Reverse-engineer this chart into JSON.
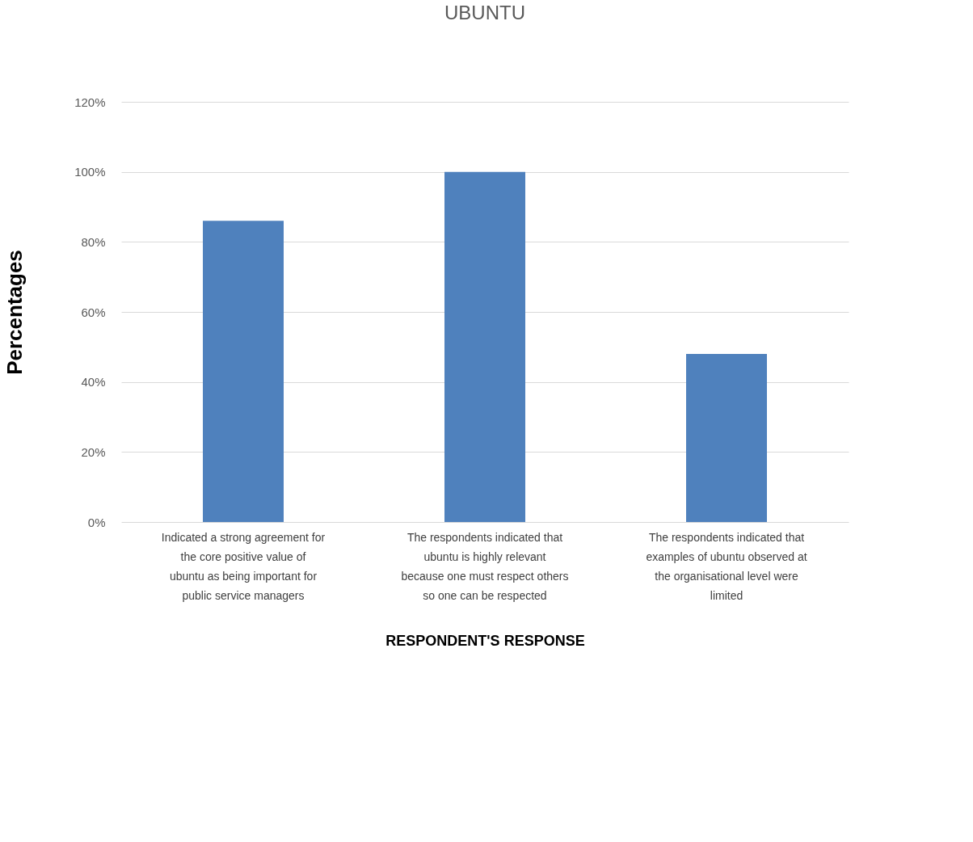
{
  "chart_data": {
    "type": "bar",
    "title": "UBUNTU",
    "xlabel": "RESPONDENT'S RESPONSE",
    "ylabel": "Percentages",
    "categories": [
      "Indicated a strong agreement for the core positive value of ubuntu as being important for public service managers",
      "The respondents indicated that ubuntu is highly relevant because one must respect others so one can be respected",
      "The respondents indicated that examples of ubuntu observed at the organisational level were limited"
    ],
    "values": [
      86,
      100,
      48
    ],
    "color": "#4f81bd",
    "ylim": [
      0,
      120
    ],
    "yticks": [
      {
        "value": 0,
        "label": "0%"
      },
      {
        "value": 20,
        "label": "20%"
      },
      {
        "value": 40,
        "label": "40%"
      },
      {
        "value": 60,
        "label": "60%"
      },
      {
        "value": 80,
        "label": "80%"
      },
      {
        "value": 100,
        "label": "100%"
      },
      {
        "value": 120,
        "label": "120%"
      }
    ],
    "grid": "y"
  }
}
